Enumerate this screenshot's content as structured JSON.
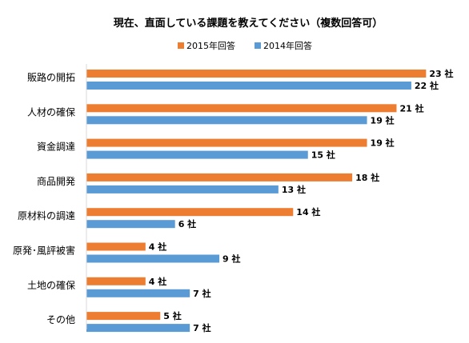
{
  "chart_data": {
    "type": "bar",
    "orientation": "horizontal",
    "title": "現在、直面している課題を教えてください（複数回答可）",
    "categories": [
      "販路の開拓",
      "人材の確保",
      "資金調達",
      "商品開発",
      "原材料の調達",
      "原発･風評被害",
      "土地の確保",
      "その他"
    ],
    "series": [
      {
        "name": "2015年回答",
        "color": "#ed7d31",
        "values": [
          23,
          21,
          19,
          18,
          14,
          4,
          4,
          5
        ]
      },
      {
        "name": "2014年回答",
        "color": "#5b9bd5",
        "values": [
          22,
          19,
          15,
          13,
          6,
          9,
          7,
          7
        ]
      }
    ],
    "unit_suffix": "社",
    "xlim": [
      0,
      24
    ],
    "grid": false,
    "legend_position": "top"
  }
}
